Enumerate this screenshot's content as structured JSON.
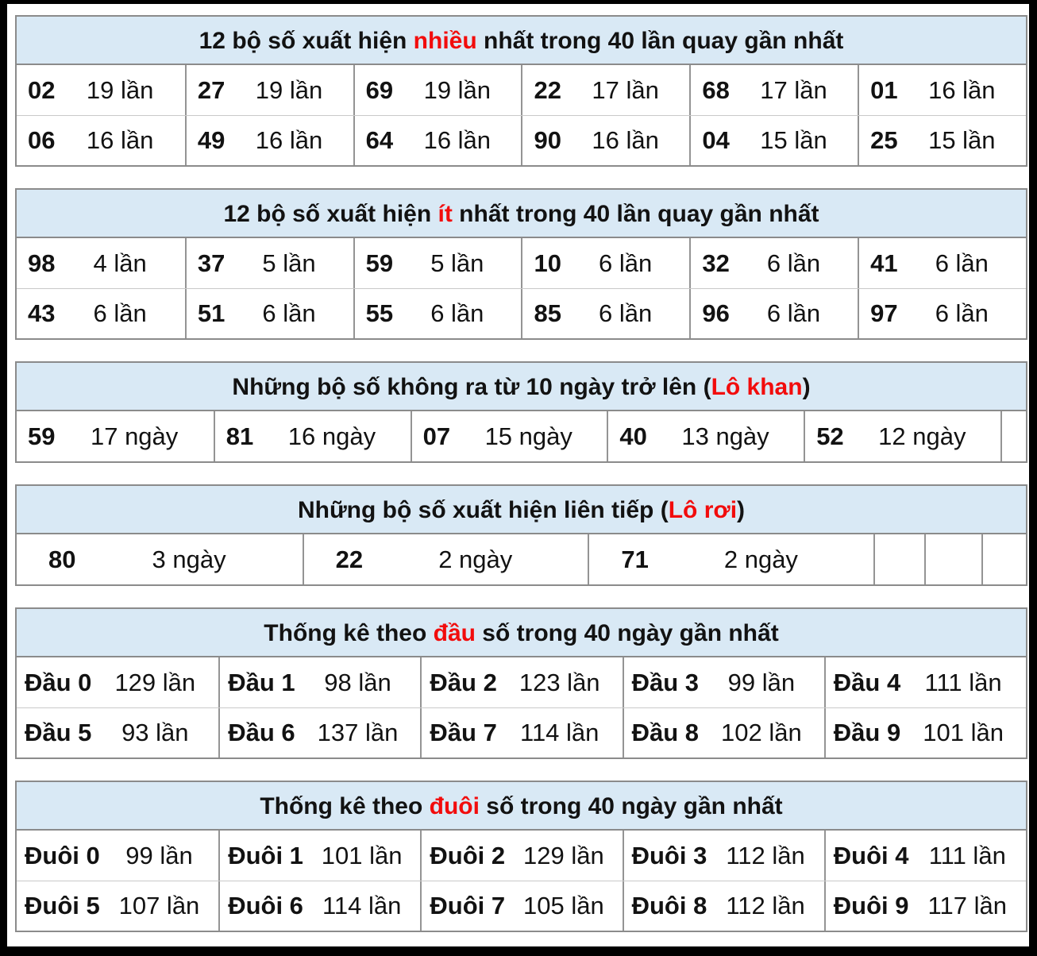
{
  "colors": {
    "frame": "#000000",
    "page_bg": "#ffffff",
    "header_bg": "#d9e9f5",
    "accent_red": "#f20c0c",
    "text": "#121212",
    "table_border": "#8b8b8b",
    "cell_divider": "#949494",
    "row_divider": "#c9c9c9"
  },
  "chart_data": [
    {
      "type": "table",
      "name": "most-frequent",
      "layout": "cols-6",
      "unit": "lần",
      "title": "12 bộ số xuất hiện nhiều nhất trong 40 lần quay gần nhất",
      "title_parts": {
        "pre": "12 bộ số xuất hiện ",
        "red": "nhiều",
        "post": " nhất trong 40 lần quay gần nhất"
      },
      "rows": [
        [
          [
            "02",
            19
          ],
          [
            "27",
            19
          ],
          [
            "69",
            19
          ],
          [
            "22",
            17
          ],
          [
            "68",
            17
          ],
          [
            "01",
            16
          ]
        ],
        [
          [
            "06",
            16
          ],
          [
            "49",
            16
          ],
          [
            "64",
            16
          ],
          [
            "90",
            16
          ],
          [
            "04",
            15
          ],
          [
            "25",
            15
          ]
        ]
      ]
    },
    {
      "type": "table",
      "name": "least-frequent",
      "layout": "cols-6",
      "unit": "lần",
      "title": "12 bộ số xuất hiện ít nhất trong 40 lần quay gần nhất",
      "title_parts": {
        "pre": "12 bộ số xuất hiện ",
        "red": "ít",
        "post": " nhất trong 40 lần quay gần nhất"
      },
      "rows": [
        [
          [
            "98",
            4
          ],
          [
            "37",
            5
          ],
          [
            "59",
            5
          ],
          [
            "10",
            6
          ],
          [
            "32",
            6
          ],
          [
            "41",
            6
          ]
        ],
        [
          [
            "43",
            6
          ],
          [
            "51",
            6
          ],
          [
            "55",
            6
          ],
          [
            "85",
            6
          ],
          [
            "96",
            6
          ],
          [
            "97",
            6
          ]
        ]
      ]
    },
    {
      "type": "table",
      "name": "lo-khan",
      "layout": "cols-5b",
      "unit": "ngày",
      "title": "Những bộ số không ra từ 10 ngày trở lên (Lô khan)",
      "title_parts": {
        "pre": "Những bộ số không ra từ 10 ngày trở lên (",
        "red": "Lô khan",
        "post": ")"
      },
      "rows": [
        [
          [
            "59",
            17
          ],
          [
            "81",
            16
          ],
          [
            "07",
            15
          ],
          [
            "40",
            13
          ],
          [
            "52",
            12
          ],
          null
        ]
      ]
    },
    {
      "type": "table",
      "name": "lo-roi",
      "layout": "cols-3b",
      "unit": "ngày",
      "title": "Những bộ số xuất hiện liên tiếp (Lô rơi)",
      "title_parts": {
        "pre": "Những bộ số xuất hiện liên tiếp (",
        "red": "Lô rơi",
        "post": ")"
      },
      "rows": [
        [
          [
            "80",
            3
          ],
          [
            "22",
            2
          ],
          [
            "71",
            2
          ],
          null,
          null,
          null
        ]
      ]
    },
    {
      "type": "table",
      "name": "dau-stats",
      "layout": "cols-5",
      "unit": "lần",
      "title": "Thống kê theo đầu số trong 40 ngày gần nhất",
      "title_parts": {
        "pre": "Thống kê theo ",
        "red": "đầu",
        "post": " số trong 40 ngày gần nhất"
      },
      "rows": [
        [
          [
            "Đầu 0",
            129
          ],
          [
            "Đầu 1",
            98
          ],
          [
            "Đầu 2",
            123
          ],
          [
            "Đầu 3",
            99
          ],
          [
            "Đầu 4",
            111
          ]
        ],
        [
          [
            "Đầu 5",
            93
          ],
          [
            "Đầu 6",
            137
          ],
          [
            "Đầu 7",
            114
          ],
          [
            "Đầu 8",
            102
          ],
          [
            "Đầu 9",
            101
          ]
        ]
      ]
    },
    {
      "type": "table",
      "name": "duoi-stats",
      "layout": "cols-5",
      "unit": "lần",
      "title": "Thống kê theo đuôi số trong 40 ngày gần nhất",
      "title_parts": {
        "pre": "Thống kê theo ",
        "red": "đuôi",
        "post": " số trong 40 ngày gần nhất"
      },
      "rows": [
        [
          [
            "Đuôi 0",
            99
          ],
          [
            "Đuôi 1",
            101
          ],
          [
            "Đuôi 2",
            129
          ],
          [
            "Đuôi 3",
            112
          ],
          [
            "Đuôi 4",
            111
          ]
        ],
        [
          [
            "Đuôi 5",
            107
          ],
          [
            "Đuôi 6",
            114
          ],
          [
            "Đuôi 7",
            105
          ],
          [
            "Đuôi 8",
            112
          ],
          [
            "Đuôi 9",
            117
          ]
        ]
      ]
    }
  ]
}
